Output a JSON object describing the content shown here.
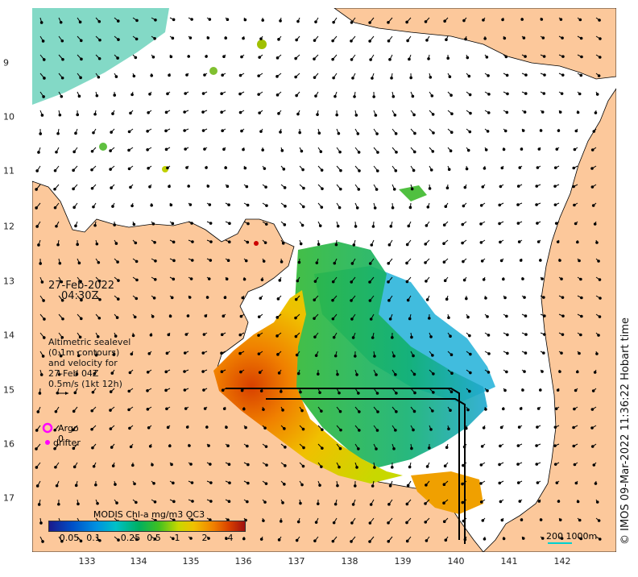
{
  "map": {
    "x_ticks": [
      "133",
      "134",
      "135",
      "136",
      "137",
      "138",
      "139",
      "140",
      "141",
      "142"
    ],
    "y_ticks": [
      "9",
      "10",
      "11",
      "12",
      "13",
      "14",
      "15",
      "16",
      "17"
    ],
    "x_range": [
      132.0,
      143.0
    ],
    "y_range": [
      -8.0,
      -17.9
    ],
    "land_color": "#fcc89b",
    "ocean_color": "#ffffff"
  },
  "annotation": {
    "date": "27-Feb-2022",
    "time": "04:30Z",
    "sealevel_lines": [
      "Altimetric sealevel",
      "(0.1m contours)",
      "and velocity for",
      "27-Feb 04Z",
      "0.5m/s (1kt 12h)"
    ]
  },
  "legend": {
    "argo_label": "Argo 0",
    "argo_color": "#ff00ff",
    "drifter_label": "drifter",
    "drifter_color": "#ff00ff"
  },
  "colorbar": {
    "title": "MODIS Chl-a mg/m3 OC3",
    "labels": [
      "0.05",
      "0.1",
      "0.25",
      "0.5",
      "1",
      "2",
      "4"
    ]
  },
  "scale": {
    "label": "200  1000m",
    "color": "#00d0d0"
  },
  "credit": "© IMOS 09-Mar-2022 11:36:22 Hobart time"
}
